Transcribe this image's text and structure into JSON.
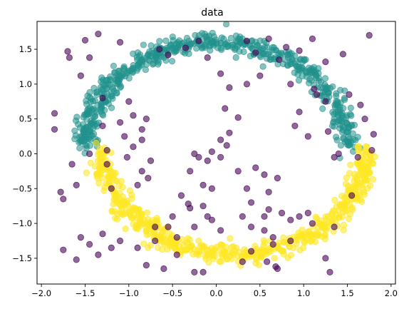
{
  "chart_data": {
    "type": "scatter",
    "title": "data",
    "xlabel": "",
    "ylabel": "",
    "xlim": [
      -2.05,
      2.05
    ],
    "ylim": [
      -1.87,
      1.9
    ],
    "grid": false,
    "xticks": [
      -2.0,
      -1.5,
      -1.0,
      -0.5,
      0.0,
      0.5,
      1.0,
      1.5,
      2.0
    ],
    "xtick_labels": [
      "−2.0",
      "−1.5",
      "−1.0",
      "−0.5",
      "0.0",
      "0.5",
      "1.0",
      "1.5",
      "2.0"
    ],
    "yticks": [
      -1.5,
      -1.0,
      -0.5,
      0.0,
      0.5,
      1.0,
      1.5
    ],
    "ytick_labels": [
      "−1.5",
      "−1.0",
      "−0.5",
      "0.0",
      "0.5",
      "1.0",
      "1.5"
    ],
    "series": [
      {
        "color": "#21918c",
        "alpha": 0.55,
        "distribution": {
          "kind": "arc",
          "cx": 0.0,
          "cy": 0.1,
          "r": 1.5,
          "theta": [
            0,
            180
          ],
          "noise": 0.07,
          "count": 600
        }
      },
      {
        "color": "#fde725",
        "alpha": 0.6,
        "distribution": {
          "kind": "arc",
          "cx": 0.2,
          "cy": 0.05,
          "r": 1.5,
          "theta": [
            180,
            360
          ],
          "noise": 0.07,
          "count": 600
        }
      },
      {
        "color": "#440154",
        "alpha": 0.6,
        "points": [
          [
            -1.35,
            1.72
          ],
          [
            -1.7,
            1.47
          ],
          [
            -1.68,
            1.38
          ],
          [
            -1.55,
            1.12
          ],
          [
            -1.45,
            1.38
          ],
          [
            -1.5,
            1.63
          ],
          [
            -1.1,
            1.6
          ],
          [
            -0.65,
            1.5
          ],
          [
            -0.55,
            1.42
          ],
          [
            -0.35,
            1.52
          ],
          [
            -0.2,
            1.62
          ],
          [
            -0.1,
            1.38
          ],
          [
            0.05,
            1.15
          ],
          [
            0.35,
            1.62
          ],
          [
            0.45,
            1.45
          ],
          [
            0.6,
            1.65
          ],
          [
            0.8,
            1.53
          ],
          [
            0.72,
            1.35
          ],
          [
            0.95,
            1.48
          ],
          [
            1.1,
            1.65
          ],
          [
            1.25,
            1.32
          ],
          [
            1.45,
            1.43
          ],
          [
            1.75,
            1.7
          ],
          [
            0.5,
            1.12
          ],
          [
            0.35,
            1.0
          ],
          [
            0.85,
            1.0
          ],
          [
            1.12,
            0.93
          ],
          [
            1.15,
            0.85
          ],
          [
            1.52,
            0.85
          ],
          [
            1.65,
            0.7
          ],
          [
            1.25,
            0.75
          ],
          [
            0.95,
            0.6
          ],
          [
            0.9,
            0.4
          ],
          [
            1.28,
            0.32
          ],
          [
            1.05,
            0.25
          ],
          [
            1.7,
            0.5
          ],
          [
            1.8,
            0.28
          ],
          [
            1.78,
            0.05
          ],
          [
            1.4,
            0.0
          ],
          [
            1.35,
            -0.05
          ],
          [
            1.62,
            -0.05
          ],
          [
            0.15,
            0.95
          ],
          [
            0.1,
            0.65
          ],
          [
            0.25,
            0.52
          ],
          [
            0.15,
            0.3
          ],
          [
            0.12,
            0.12
          ],
          [
            0.05,
            -0.05
          ],
          [
            -1.3,
            0.8
          ],
          [
            -1.3,
            0.4
          ],
          [
            -1.1,
            0.45
          ],
          [
            -1.0,
            0.75
          ],
          [
            -0.95,
            0.55
          ],
          [
            -0.85,
            0.35
          ],
          [
            -0.8,
            0.5
          ],
          [
            -1.45,
            0.0
          ],
          [
            -1.25,
            0.05
          ],
          [
            -1.25,
            -0.15
          ],
          [
            -1.05,
            0.25
          ],
          [
            -0.95,
            0.1
          ],
          [
            -0.85,
            0.2
          ],
          [
            -0.75,
            -0.1
          ],
          [
            -1.02,
            -0.05
          ],
          [
            -0.85,
            -0.25
          ],
          [
            -0.9,
            -0.45
          ],
          [
            -0.78,
            -0.35
          ],
          [
            -1.65,
            -0.15
          ],
          [
            -1.6,
            -0.45
          ],
          [
            -1.78,
            -0.55
          ],
          [
            -1.75,
            -0.65
          ],
          [
            -1.85,
            0.35
          ],
          [
            -1.85,
            0.58
          ],
          [
            -1.2,
            -0.5
          ],
          [
            -0.25,
            0.0
          ],
          [
            -0.2,
            -0.05
          ],
          [
            -0.1,
            -0.1
          ],
          [
            0.05,
            0.2
          ],
          [
            -0.05,
            0.03
          ],
          [
            -0.3,
            -0.25
          ],
          [
            -0.15,
            -0.45
          ],
          [
            -0.05,
            -0.5
          ],
          [
            0.25,
            -0.25
          ],
          [
            0.45,
            -0.2
          ],
          [
            0.55,
            -0.3
          ],
          [
            0.7,
            -0.35
          ],
          [
            0.35,
            -0.5
          ],
          [
            0.4,
            -0.7
          ],
          [
            0.6,
            -0.8
          ],
          [
            0.75,
            -0.85
          ],
          [
            0.85,
            -0.95
          ],
          [
            0.55,
            -0.9
          ],
          [
            0.95,
            -0.9
          ],
          [
            1.05,
            -0.85
          ],
          [
            0.4,
            -1.05
          ],
          [
            0.55,
            -1.1
          ],
          [
            0.65,
            -1.2
          ],
          [
            0.3,
            -0.9
          ],
          [
            0.05,
            -1.1
          ],
          [
            -0.1,
            -0.9
          ],
          [
            -0.05,
            -0.95
          ],
          [
            -0.15,
            -0.75
          ],
          [
            -0.4,
            -0.6
          ],
          [
            -0.32,
            -0.72
          ],
          [
            -0.3,
            -0.78
          ],
          [
            -0.25,
            -1.05
          ],
          [
            -0.55,
            -1.05
          ],
          [
            -0.7,
            -1.05
          ],
          [
            -0.5,
            -0.9
          ],
          [
            -0.45,
            -1.2
          ],
          [
            -0.45,
            -1.45
          ],
          [
            -0.7,
            -1.25
          ],
          [
            -0.8,
            -1.6
          ],
          [
            -0.9,
            -1.35
          ],
          [
            -1.1,
            -1.25
          ],
          [
            -1.2,
            -1.35
          ],
          [
            -1.3,
            -1.15
          ],
          [
            -1.55,
            -1.2
          ],
          [
            -1.45,
            -1.3
          ],
          [
            -1.6,
            -1.52
          ],
          [
            -1.75,
            -1.38
          ],
          [
            -1.35,
            -1.45
          ],
          [
            -0.6,
            -1.65
          ],
          [
            -0.25,
            -1.7
          ],
          [
            -0.15,
            -1.7
          ],
          [
            0.3,
            -1.55
          ],
          [
            0.4,
            -1.4
          ],
          [
            0.58,
            -1.55
          ],
          [
            0.68,
            -1.62
          ],
          [
            0.7,
            -1.65
          ],
          [
            1.25,
            -1.5
          ],
          [
            1.3,
            -1.7
          ],
          [
            1.35,
            -1.05
          ],
          [
            1.55,
            -0.6
          ],
          [
            1.1,
            -1.0
          ],
          [
            0.6,
            -0.55
          ],
          [
            0.65,
            -1.3
          ],
          [
            0.85,
            -1.25
          ]
        ]
      }
    ]
  }
}
